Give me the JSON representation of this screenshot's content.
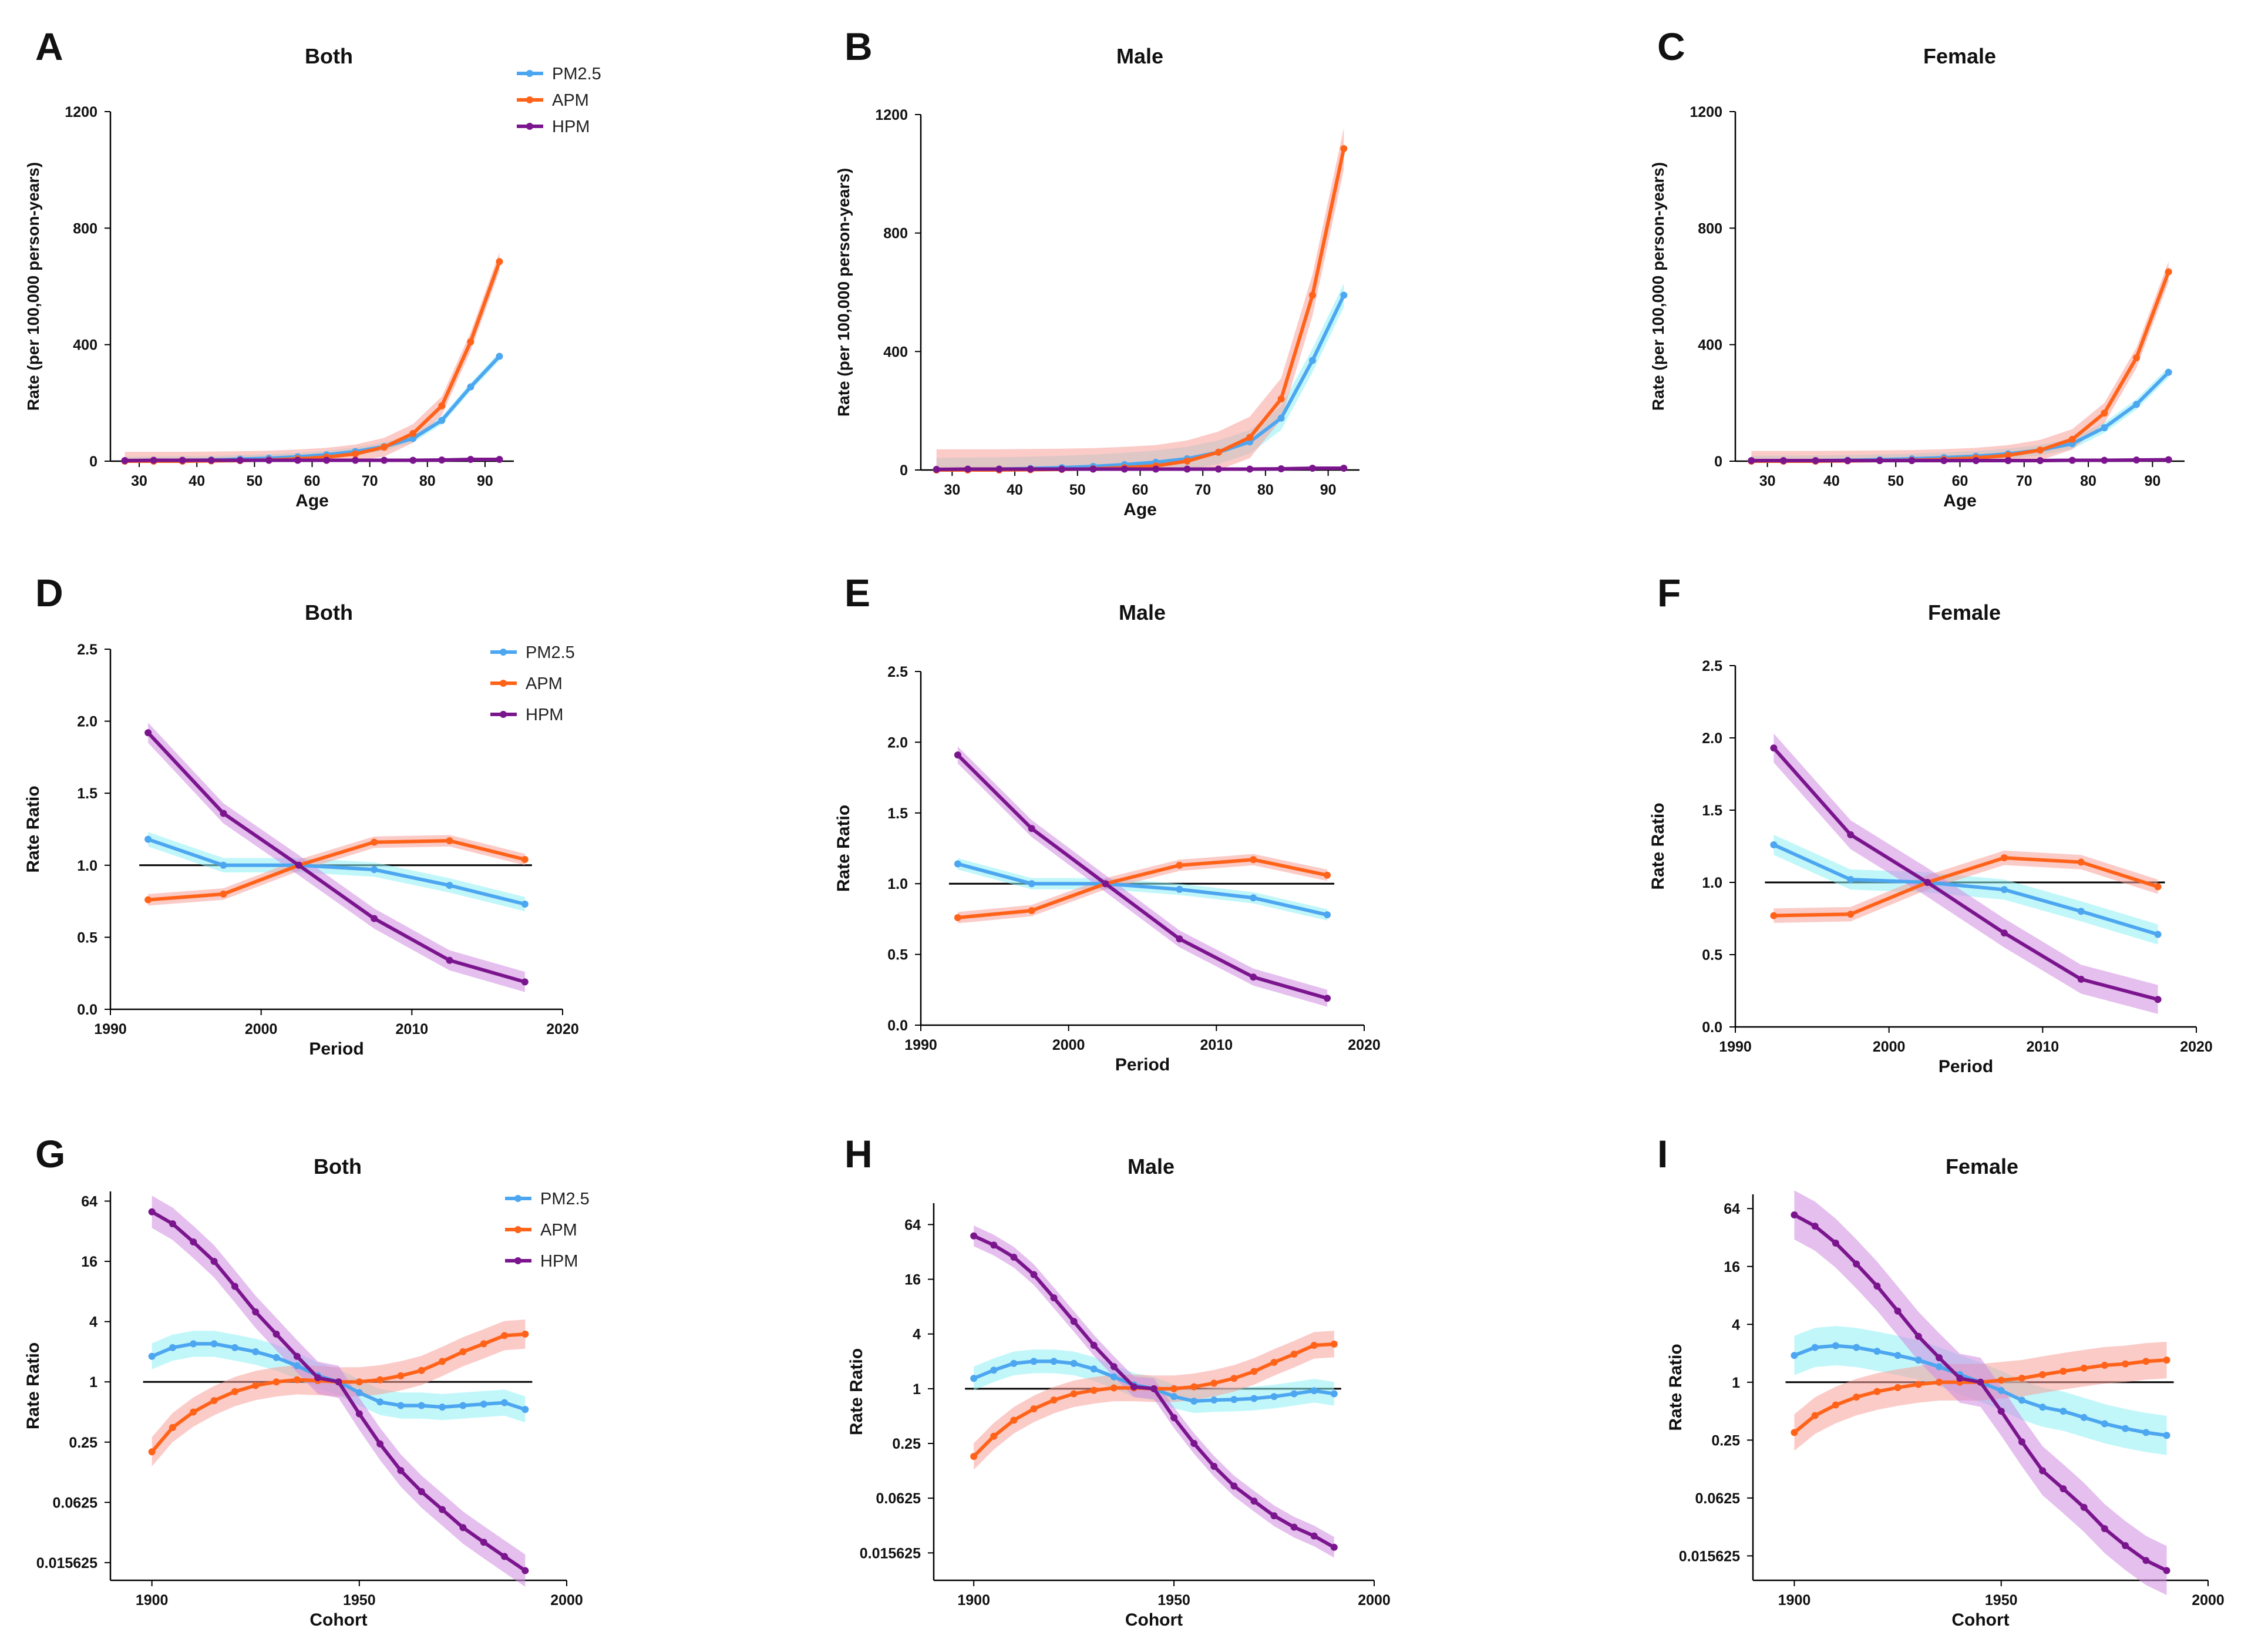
{
  "figure": {
    "colors": {
      "PM2.5": "#4da6f0",
      "APM": "#ff6319",
      "HPM": "#7b158e",
      "band_PM2.5": "#8ff0f5",
      "band_APM": "#f7a09a",
      "band_HPM": "#d08ae0",
      "reference_line": "#000000"
    }
  },
  "chart_data": [
    {
      "panel": "A",
      "title": "Both",
      "type": "line",
      "xlabel": "Age",
      "ylabel": "Rate (per 100,000 person-years)",
      "xlim": [
        25,
        95
      ],
      "ylim": [
        0,
        1200
      ],
      "xticks": [
        30,
        40,
        50,
        60,
        70,
        80,
        90
      ],
      "yticks": [
        0,
        400,
        800,
        1200
      ],
      "yticklabels": [
        "0",
        "400",
        "800",
        "1200"
      ],
      "ref_line": null,
      "legend": [
        "PM2.5",
        "APM",
        "HPM"
      ],
      "x": [
        27.5,
        32.5,
        37.5,
        42.5,
        47.5,
        52.5,
        57.5,
        62.5,
        67.5,
        72.5,
        77.5,
        82.5,
        87.5,
        92.5
      ],
      "series": [
        {
          "name": "PM2.5",
          "values": [
            1,
            2,
            3,
            4,
            7,
            10,
            15,
            22,
            33,
            50,
            78,
            140,
            255,
            360
          ],
          "band": 14
        },
        {
          "name": "APM",
          "values": [
            0,
            0,
            0,
            1,
            2,
            4,
            8,
            14,
            25,
            48,
            95,
            190,
            410,
            685
          ],
          "band": 32
        },
        {
          "name": "HPM",
          "values": [
            2,
            3,
            3,
            3,
            3,
            3,
            3,
            3,
            3,
            3,
            3,
            4,
            6,
            6
          ],
          "band": 1
        }
      ]
    },
    {
      "panel": "B",
      "title": "Male",
      "type": "line",
      "xlabel": "Age",
      "ylabel": "Rate (per 100,000 person-years)",
      "xlim": [
        25,
        95
      ],
      "ylim": [
        0,
        1200
      ],
      "xticks": [
        30,
        40,
        50,
        60,
        70,
        80,
        90
      ],
      "yticks": [
        0,
        400,
        800,
        1200
      ],
      "yticklabels": [
        "0",
        "400",
        "800",
        "1200"
      ],
      "ref_line": null,
      "legend": null,
      "x": [
        27.5,
        32.5,
        37.5,
        42.5,
        47.5,
        52.5,
        57.5,
        62.5,
        67.5,
        72.5,
        77.5,
        82.5,
        87.5,
        92.5
      ],
      "series": [
        {
          "name": "PM2.5",
          "values": [
            1,
            2,
            3,
            5,
            8,
            12,
            18,
            26,
            38,
            60,
            95,
            175,
            370,
            590
          ],
          "band": 40
        },
        {
          "name": "APM",
          "values": [
            0,
            0,
            0,
            1,
            2,
            4,
            8,
            14,
            30,
            60,
            110,
            240,
            590,
            1085
          ],
          "band": 70
        },
        {
          "name": "HPM",
          "values": [
            2,
            3,
            3,
            3,
            3,
            3,
            3,
            3,
            3,
            3,
            3,
            4,
            6,
            6
          ],
          "band": 1
        }
      ]
    },
    {
      "panel": "C",
      "title": "Female",
      "type": "line",
      "xlabel": "Age",
      "ylabel": "Rate (per 100,000 person-years)",
      "xlim": [
        25,
        95
      ],
      "ylim": [
        0,
        1200
      ],
      "xticks": [
        30,
        40,
        50,
        60,
        70,
        80,
        90
      ],
      "yticks": [
        0,
        400,
        800,
        1200
      ],
      "yticklabels": [
        "0",
        "400",
        "800",
        "1200"
      ],
      "ref_line": null,
      "legend": null,
      "x": [
        27.5,
        32.5,
        37.5,
        42.5,
        47.5,
        52.5,
        57.5,
        62.5,
        67.5,
        72.5,
        77.5,
        82.5,
        87.5,
        92.5
      ],
      "series": [
        {
          "name": "PM2.5",
          "values": [
            1,
            1,
            2,
            3,
            5,
            8,
            12,
            17,
            25,
            38,
            60,
            115,
            195,
            305
          ],
          "band": 18
        },
        {
          "name": "APM",
          "values": [
            0,
            0,
            0,
            1,
            2,
            3,
            6,
            11,
            20,
            38,
            75,
            165,
            355,
            650
          ],
          "band": 35
        },
        {
          "name": "HPM",
          "values": [
            2,
            2,
            2,
            2,
            2,
            2,
            2,
            2,
            2,
            2,
            3,
            3,
            4,
            5
          ],
          "band": 1
        }
      ]
    },
    {
      "panel": "D",
      "title": "Both",
      "type": "line",
      "xlabel": "Period",
      "ylabel": "Rate Ratio",
      "xlim": [
        1990,
        2020
      ],
      "ylim": [
        0,
        2.5
      ],
      "xticks": [
        1990,
        2000,
        2010,
        2020
      ],
      "yticks": [
        0,
        0.5,
        1,
        1.5,
        2,
        2.5
      ],
      "yticklabels": [
        "0.0",
        "0.5",
        "1.0",
        "1.5",
        "2.0",
        "2.5"
      ],
      "ref_line": 1.0,
      "legend": [
        "PM2.5",
        "APM",
        "HPM"
      ],
      "x": [
        1992.5,
        1997.5,
        2002.5,
        2007.5,
        2012.5,
        2017.5
      ],
      "series": [
        {
          "name": "PM2.5",
          "values": [
            1.18,
            1.0,
            1.0,
            0.97,
            0.86,
            0.73
          ],
          "band": 0.05
        },
        {
          "name": "APM",
          "values": [
            0.76,
            0.8,
            1.0,
            1.16,
            1.17,
            1.04
          ],
          "band": 0.04
        },
        {
          "name": "HPM",
          "values": [
            1.92,
            1.36,
            1.0,
            0.63,
            0.34,
            0.19
          ],
          "band": 0.07
        }
      ]
    },
    {
      "panel": "E",
      "title": "Male",
      "type": "line",
      "xlabel": "Period",
      "ylabel": "Rate Ratio",
      "xlim": [
        1990,
        2020
      ],
      "ylim": [
        0,
        2.5
      ],
      "xticks": [
        1990,
        2000,
        2010,
        2020
      ],
      "yticks": [
        0,
        0.5,
        1,
        1.5,
        2,
        2.5
      ],
      "yticklabels": [
        "0.0",
        "0.5",
        "1.0",
        "1.5",
        "2.0",
        "2.5"
      ],
      "ref_line": 1.0,
      "legend": null,
      "x": [
        1992.5,
        1997.5,
        2002.5,
        2007.5,
        2012.5,
        2017.5
      ],
      "series": [
        {
          "name": "PM2.5",
          "values": [
            1.14,
            1.0,
            1.0,
            0.96,
            0.9,
            0.78
          ],
          "band": 0.04
        },
        {
          "name": "APM",
          "values": [
            0.76,
            0.81,
            1.0,
            1.13,
            1.17,
            1.06
          ],
          "band": 0.04
        },
        {
          "name": "HPM",
          "values": [
            1.91,
            1.39,
            1.0,
            0.61,
            0.34,
            0.19
          ],
          "band": 0.06
        }
      ]
    },
    {
      "panel": "F",
      "title": "Female",
      "type": "line",
      "xlabel": "Period",
      "ylabel": "Rate Ratio",
      "xlim": [
        1990,
        2020
      ],
      "ylim": [
        0,
        2.5
      ],
      "xticks": [
        1990,
        2000,
        2010,
        2020
      ],
      "yticks": [
        0,
        0.5,
        1,
        1.5,
        2,
        2.5
      ],
      "yticklabels": [
        "0.0",
        "0.5",
        "1.0",
        "1.5",
        "2.0",
        "2.5"
      ],
      "ref_line": 1.0,
      "legend": null,
      "x": [
        1992.5,
        1997.5,
        2002.5,
        2007.5,
        2012.5,
        2017.5
      ],
      "series": [
        {
          "name": "PM2.5",
          "values": [
            1.26,
            1.02,
            1.0,
            0.95,
            0.8,
            0.64
          ],
          "band": 0.07
        },
        {
          "name": "APM",
          "values": [
            0.77,
            0.78,
            1.0,
            1.17,
            1.14,
            0.97
          ],
          "band": 0.05
        },
        {
          "name": "HPM",
          "values": [
            1.93,
            1.33,
            1.0,
            0.65,
            0.33,
            0.19
          ],
          "band": 0.1
        }
      ]
    },
    {
      "panel": "G",
      "title": "Both",
      "type": "line",
      "scale": "log2",
      "xlabel": "Cohort",
      "ylabel": "Rate Ratio",
      "xlim": [
        1890,
        2000
      ],
      "ylim": [
        0.0104,
        80
      ],
      "xticks": [
        1900,
        1950,
        2000
      ],
      "yticks": [
        0.015625,
        0.0625,
        0.25,
        1,
        4,
        16,
        64
      ],
      "yticklabels": [
        "0.015625",
        "0.0625",
        "0.25",
        "1",
        "4",
        "16",
        "64"
      ],
      "ref_line": 1,
      "legend": [
        "PM2.5",
        "APM",
        "HPM"
      ],
      "x": [
        1900,
        1905,
        1910,
        1915,
        1920,
        1925,
        1930,
        1935,
        1940,
        1945,
        1950,
        1955,
        1960,
        1965,
        1970,
        1975,
        1980,
        1985,
        1990
      ],
      "series": [
        {
          "name": "PM2.5",
          "values": [
            1.8,
            2.2,
            2.4,
            2.4,
            2.2,
            2.0,
            1.75,
            1.45,
            1.15,
            1.0,
            0.78,
            0.63,
            0.58,
            0.58,
            0.56,
            0.58,
            0.6,
            0.62,
            0.53
          ],
          "band_factor": 1.35
        },
        {
          "name": "APM",
          "values": [
            0.2,
            0.35,
            0.5,
            0.65,
            0.8,
            0.92,
            1.0,
            1.05,
            1.03,
            1.0,
            1.0,
            1.05,
            1.15,
            1.3,
            1.6,
            2.0,
            2.4,
            2.9,
            3.0
          ],
          "band_factor": 1.4
        },
        {
          "name": "HPM",
          "values": [
            50,
            38,
            25,
            16,
            9,
            5,
            3,
            1.8,
            1.1,
            1.0,
            0.48,
            0.24,
            0.13,
            0.08,
            0.053,
            0.035,
            0.025,
            0.018,
            0.013
          ],
          "band_factor": 1.45
        }
      ]
    },
    {
      "panel": "H",
      "title": "Male",
      "type": "line",
      "scale": "log2",
      "xlabel": "Cohort",
      "ylabel": "Rate Ratio",
      "xlim": [
        1890,
        2000
      ],
      "ylim": [
        0.0078,
        110
      ],
      "xticks": [
        1900,
        1950,
        2000
      ],
      "yticks": [
        0.015625,
        0.0625,
        0.25,
        1,
        4,
        16,
        64
      ],
      "yticklabels": [
        "0.015625",
        "0.0625",
        "0.25",
        "1",
        "4",
        "16",
        "64"
      ],
      "ref_line": 1,
      "legend": null,
      "x": [
        1900,
        1905,
        1910,
        1915,
        1920,
        1925,
        1930,
        1935,
        1940,
        1945,
        1950,
        1955,
        1960,
        1965,
        1970,
        1975,
        1980,
        1985,
        1990
      ],
      "series": [
        {
          "name": "PM2.5",
          "values": [
            1.3,
            1.6,
            1.9,
            2.0,
            2.0,
            1.9,
            1.65,
            1.35,
            1.1,
            1.0,
            0.82,
            0.73,
            0.75,
            0.76,
            0.78,
            0.82,
            0.88,
            0.95,
            0.88
          ],
          "band_factor": 1.35
        },
        {
          "name": "APM",
          "values": [
            0.18,
            0.3,
            0.45,
            0.6,
            0.75,
            0.88,
            0.96,
            1.02,
            1.02,
            1.0,
            1.0,
            1.05,
            1.15,
            1.3,
            1.55,
            1.95,
            2.4,
            3.0,
            3.1
          ],
          "band_factor": 1.4
        },
        {
          "name": "HPM",
          "values": [
            48,
            38,
            28,
            18,
            10,
            5.5,
            3.0,
            1.75,
            1.05,
            1.0,
            0.48,
            0.25,
            0.14,
            0.085,
            0.058,
            0.04,
            0.03,
            0.024,
            0.018
          ],
          "band_factor": 1.3
        }
      ]
    },
    {
      "panel": "I",
      "title": "Female",
      "type": "line",
      "scale": "log2",
      "xlabel": "Cohort",
      "ylabel": "Rate Ratio",
      "xlim": [
        1890,
        2000
      ],
      "ylim": [
        0.0087,
        90
      ],
      "xticks": [
        1900,
        1950,
        2000
      ],
      "yticks": [
        0.015625,
        0.0625,
        0.25,
        1,
        4,
        16,
        64
      ],
      "yticklabels": [
        "0.015625",
        "0.0625",
        "0.25",
        "1",
        "4",
        "16",
        "64"
      ],
      "ref_line": 1,
      "legend": null,
      "x": [
        1900,
        1905,
        1910,
        1915,
        1920,
        1925,
        1930,
        1935,
        1940,
        1945,
        1950,
        1955,
        1960,
        1965,
        1970,
        1975,
        1980,
        1985,
        1990
      ],
      "series": [
        {
          "name": "PM2.5",
          "values": [
            1.9,
            2.3,
            2.4,
            2.3,
            2.1,
            1.9,
            1.7,
            1.45,
            1.2,
            1.0,
            0.82,
            0.65,
            0.55,
            0.5,
            0.43,
            0.37,
            0.33,
            0.3,
            0.28
          ],
          "band_factor": 1.6
        },
        {
          "name": "APM",
          "values": [
            0.3,
            0.45,
            0.58,
            0.7,
            0.8,
            0.88,
            0.95,
            1.0,
            1.0,
            1.0,
            1.05,
            1.1,
            1.2,
            1.3,
            1.4,
            1.5,
            1.55,
            1.65,
            1.7
          ],
          "band_factor": 1.55
        },
        {
          "name": "HPM",
          "values": [
            55,
            42,
            28,
            17,
            10,
            5.5,
            3.0,
            1.8,
            1.1,
            1.0,
            0.5,
            0.24,
            0.12,
            0.078,
            0.05,
            0.03,
            0.02,
            0.014,
            0.011
          ],
          "band_factor": 1.8
        }
      ]
    }
  ]
}
